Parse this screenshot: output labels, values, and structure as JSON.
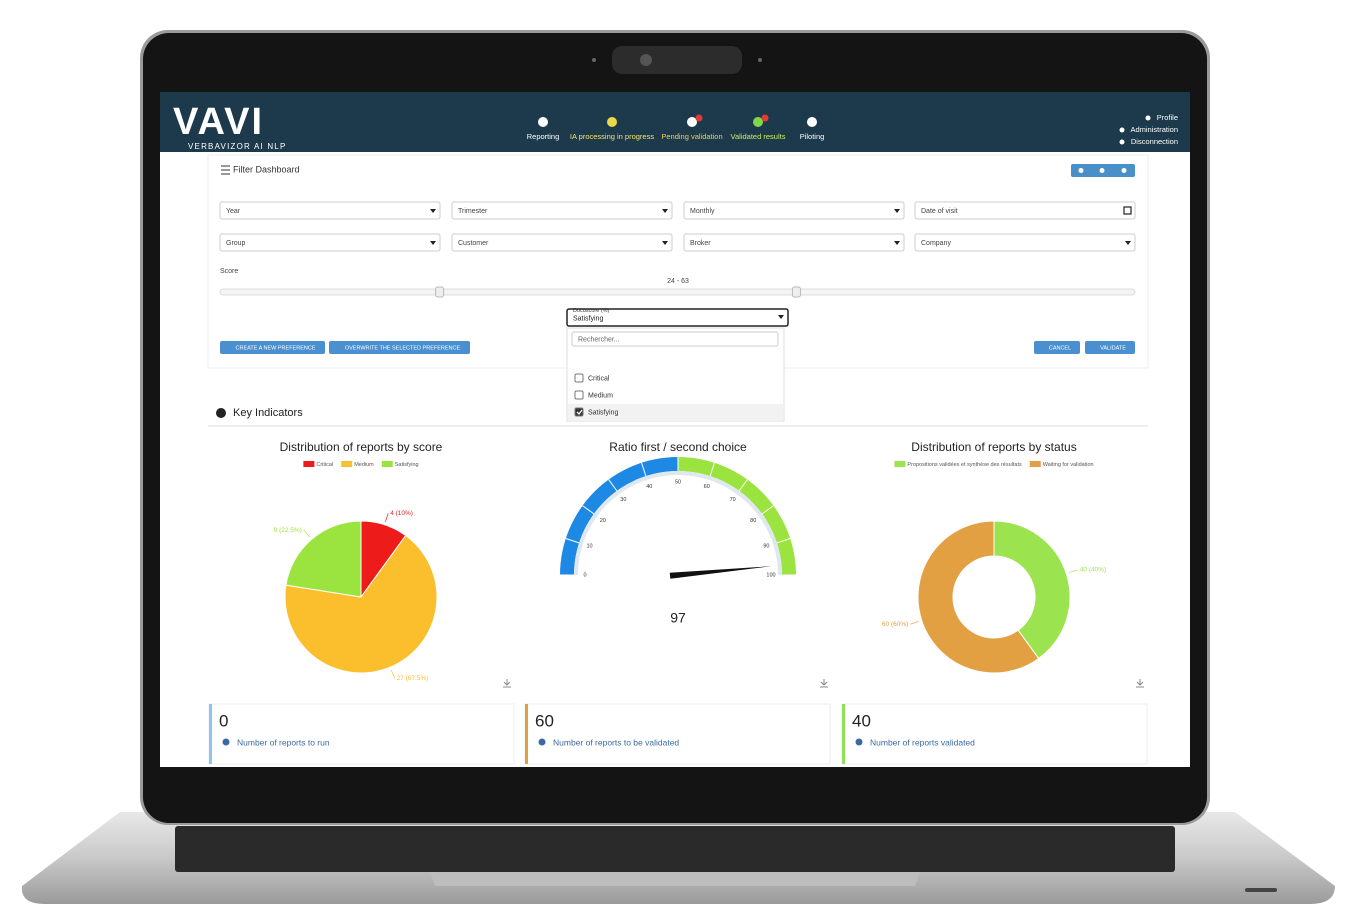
{
  "header": {
    "logo": "VAVI",
    "tagline": "VERBAVIZOR AI NLP",
    "nav": [
      {
        "label": "Reporting",
        "color": "#ffffff"
      },
      {
        "label": "IA processing in progress",
        "color": "#f3e46a"
      },
      {
        "label": "Pending validation",
        "color": "#f2cf4a"
      },
      {
        "label": "Validated results",
        "color": "#c9ef5c"
      },
      {
        "label": "Piloting",
        "color": "#ffffff"
      }
    ],
    "user_menu": [
      "Profile",
      "Administration",
      "Disconnection"
    ]
  },
  "filter": {
    "title": "Filter Dashboard",
    "fields": [
      {
        "label": "Year",
        "type": "select"
      },
      {
        "label": "Trimester",
        "type": "select"
      },
      {
        "label": "Monthly",
        "type": "select"
      },
      {
        "label": "Date of visit",
        "type": "date"
      },
      {
        "label": "Group",
        "type": "select"
      },
      {
        "label": "Customer",
        "type": "select"
      },
      {
        "label": "Broker",
        "type": "select"
      },
      {
        "label": "Company",
        "type": "select"
      }
    ],
    "score": {
      "label": "Score",
      "range_label": "24 - 63",
      "values": [
        24,
        63
      ]
    },
    "docuscore": {
      "label": "Docuscore (%)",
      "selected": "Satisfying",
      "search_placeholder": "Rechercher...",
      "options": [
        {
          "label": "Critical",
          "checked": false
        },
        {
          "label": "Medium",
          "checked": false
        },
        {
          "label": "Satisfying",
          "checked": true
        }
      ]
    },
    "buttons_left": [
      "CREATE A NEW PREFERENCE",
      "OVERWRITE THE SELECTED PREFERENCE"
    ],
    "buttons_right": [
      "CANCEL",
      "VALIDATE"
    ]
  },
  "key_indicators": {
    "title": "Key Indicators",
    "charts": [
      {
        "type": "pie",
        "title": "Distribution of reports by score",
        "categories": [
          "Critical",
          "Medium",
          "Satisfying"
        ],
        "values": [
          4,
          27,
          9
        ],
        "value_labels": [
          "4 (10%)",
          "27 (67.5%)",
          "9 (22.5%)"
        ],
        "colors": [
          "#ee1b1b",
          "#fbbf2d",
          "#9be43f"
        ]
      },
      {
        "type": "gauge",
        "title": "Ratio first / second choice",
        "value": 97,
        "ylim": [
          0,
          100
        ],
        "yticks": [
          0,
          10,
          20,
          30,
          40,
          50,
          60,
          70,
          80,
          90,
          100
        ],
        "colors": [
          "#1e88e5",
          "#9be43f"
        ]
      },
      {
        "type": "donut",
        "title": "Distribution of reports by status",
        "categories": [
          "Propositions validées et synthèse des résultats",
          "Waiting for validation"
        ],
        "values": [
          40,
          60
        ],
        "value_labels": [
          "40 (40%)",
          "60 (60%)"
        ],
        "colors": [
          "#9be44f",
          "#e2a042"
        ]
      }
    ],
    "cards": [
      {
        "value": 0,
        "label": "Number of reports to run",
        "color": "#8ec5f0"
      },
      {
        "value": 60,
        "label": "Number of reports to be validated",
        "color": "#e0a040"
      },
      {
        "value": 40,
        "label": "Number of reports validated",
        "color": "#8fe05a"
      }
    ]
  }
}
